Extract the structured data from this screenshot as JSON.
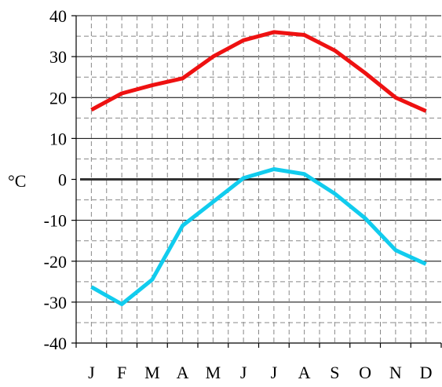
{
  "chart_data": {
    "type": "line",
    "title": "",
    "xlabel": "",
    "ylabel": "°C",
    "categories": [
      "J",
      "F",
      "M",
      "A",
      "M",
      "J",
      "J",
      "A",
      "S",
      "O",
      "N",
      "D"
    ],
    "ylim": [
      -40,
      40
    ],
    "yticks": [
      40,
      30,
      20,
      10,
      0,
      -10,
      -20,
      -30,
      -40
    ],
    "grid": true,
    "legend": "none",
    "series": [
      {
        "color": "#ee1111",
        "values": [
          17,
          21,
          23,
          24.7,
          30,
          34,
          36,
          35.3,
          31.5,
          26,
          20,
          16.7
        ]
      },
      {
        "color": "#11ccee",
        "values": [
          -26.3,
          -30.5,
          -24.5,
          -11.3,
          -5.5,
          0.3,
          2.5,
          1.3,
          -3.5,
          -9.5,
          -17.3,
          -20.7
        ]
      }
    ],
    "zero_line_color": "#333333"
  }
}
